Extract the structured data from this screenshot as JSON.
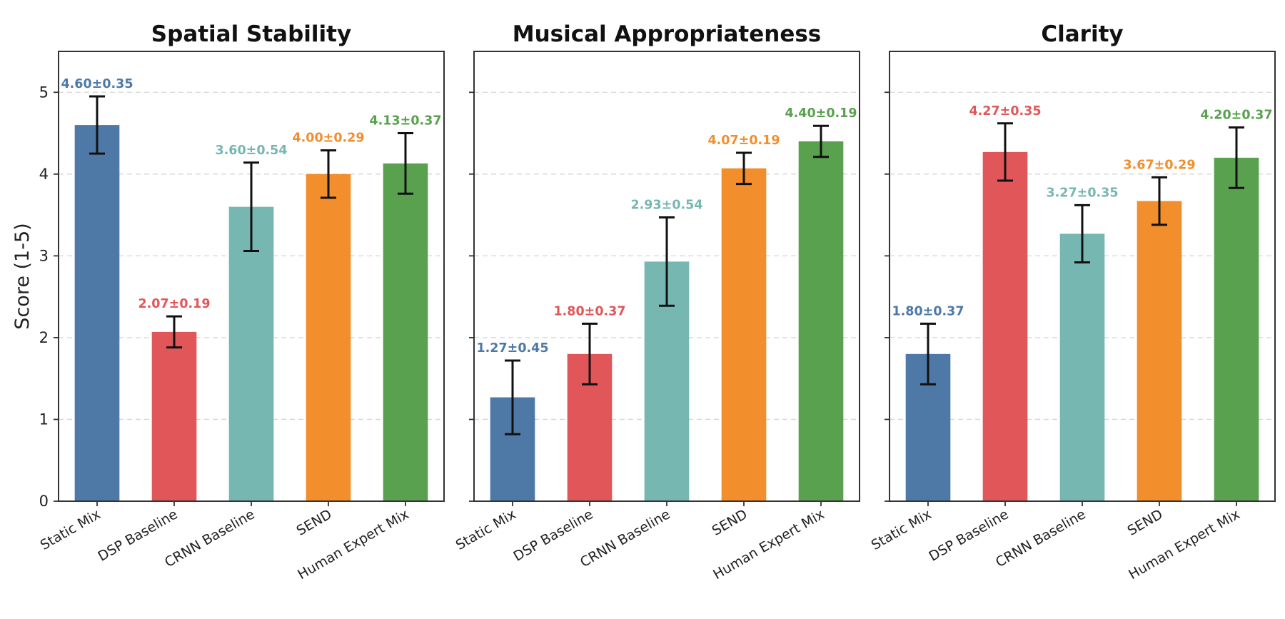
{
  "chart_data": {
    "type": "bar",
    "ylabel": "Score (1-5)",
    "ylim": [
      0,
      5.5
    ],
    "yticks": [
      "0",
      "1",
      "2",
      "3",
      "4",
      "5"
    ],
    "grid": "horizontal dashed",
    "colors": [
      "#4e79a7",
      "#e15759",
      "#76b7b2",
      "#f28e2b",
      "#59a14f"
    ],
    "categories": [
      "Static Mix",
      "DSP Baseline",
      "CRNN Baseline",
      "SEND",
      "Human Expert Mix"
    ],
    "panels": [
      {
        "title": "Spatial Stability",
        "values": [
          4.6,
          2.07,
          3.6,
          4.0,
          4.13
        ],
        "errors": [
          0.35,
          0.19,
          0.54,
          0.29,
          0.37
        ],
        "labels": [
          "4.60±0.35",
          "2.07±0.19",
          "3.60±0.54",
          "4.00±0.29",
          "4.13±0.37"
        ]
      },
      {
        "title": "Musical Appropriateness",
        "values": [
          1.27,
          1.8,
          2.93,
          4.07,
          4.4
        ],
        "errors": [
          0.45,
          0.37,
          0.54,
          0.19,
          0.19
        ],
        "labels": [
          "1.27±0.45",
          "1.80±0.37",
          "2.93±0.54",
          "4.07±0.19",
          "4.40±0.19"
        ]
      },
      {
        "title": "Clarity",
        "values": [
          1.8,
          4.27,
          3.27,
          3.67,
          4.2
        ],
        "errors": [
          0.37,
          0.35,
          0.35,
          0.29,
          0.37
        ],
        "labels": [
          "1.80±0.37",
          "4.27±0.35",
          "3.27±0.35",
          "3.67±0.29",
          "4.20±0.37"
        ]
      }
    ]
  }
}
